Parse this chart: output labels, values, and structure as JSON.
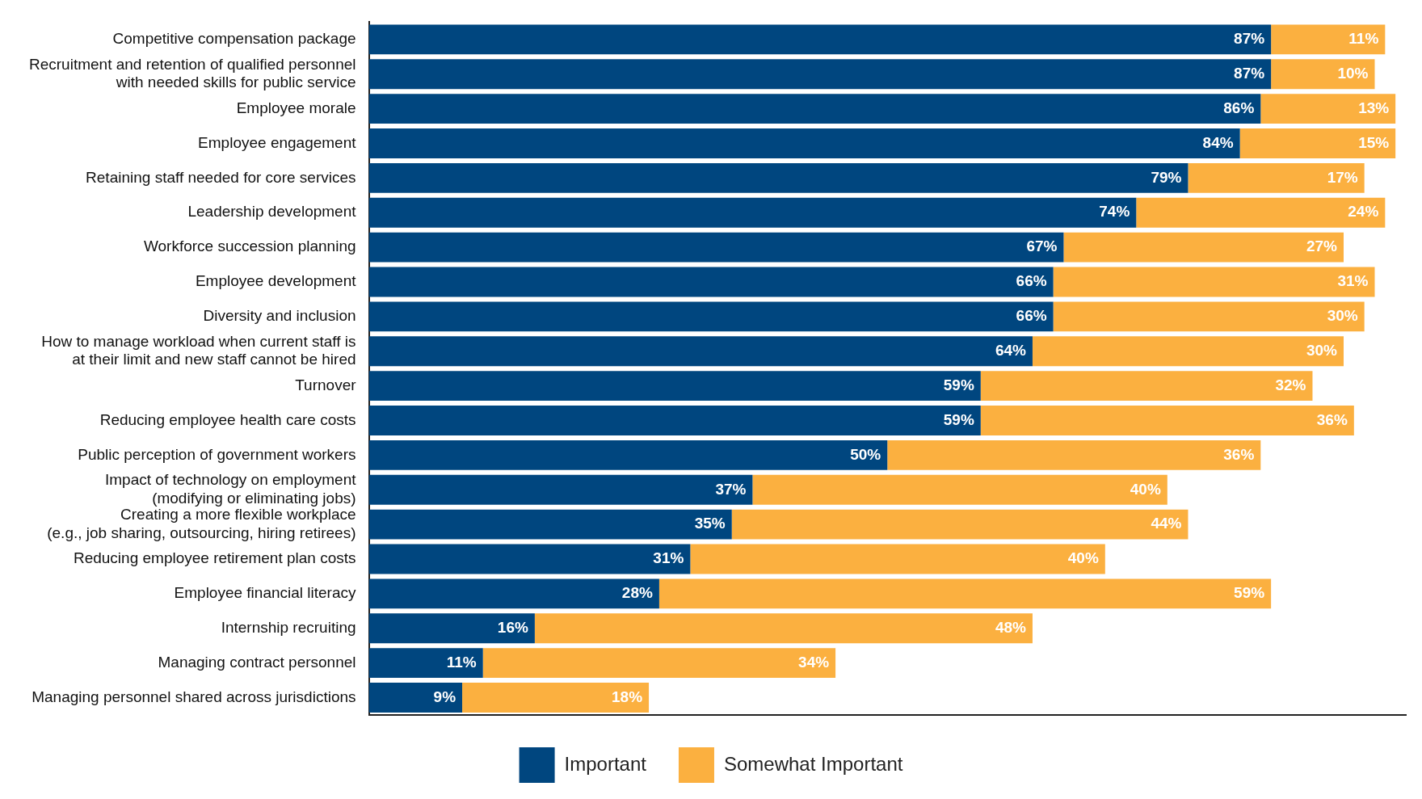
{
  "chart_data": {
    "type": "bar",
    "orientation": "horizontal",
    "stacked": true,
    "legend": "bottom",
    "grid": false,
    "tick_labels": "y",
    "categories": [
      "Competitive compensation package",
      "Recruitment and retention of qualified personnel\nwith needed skills for public service",
      "Employee morale",
      "Employee engagement",
      "Retaining staff needed for core services",
      "Leadership development",
      "Workforce succession planning",
      "Employee development",
      "Diversity and inclusion",
      "How to manage workload when current staff is\nat their limit and new staff cannot be hired",
      "Turnover",
      "Reducing employee health care costs",
      "Public perception of government workers",
      "Impact of technology on employment\n(modifying or eliminating jobs)",
      "Creating a more flexible workplace\n(e.g., job sharing, outsourcing, hiring retirees)",
      "Reducing employee retirement plan costs",
      "Employee financial literacy",
      "Internship recruiting",
      "Managing contract personnel",
      "Managing personnel shared across jurisdictions"
    ],
    "series": [
      {
        "name": "Important",
        "color": "#00467f",
        "values": [
          87,
          87,
          86,
          84,
          79,
          74,
          67,
          66,
          66,
          64,
          59,
          59,
          50,
          37,
          35,
          31,
          28,
          16,
          11,
          9
        ],
        "value_labels": [
          "87%",
          "87%",
          "86%",
          "84%",
          "79%",
          "74%",
          "67%",
          "66%",
          "66%",
          "64%",
          "59%",
          "59%",
          "50%",
          "37%",
          "35%",
          "31%",
          "28%",
          "16%",
          "11%",
          "9%"
        ]
      },
      {
        "name": "Somewhat Important",
        "color": "#fbb040",
        "values": [
          11,
          10,
          13,
          15,
          17,
          24,
          27,
          31,
          30,
          30,
          32,
          36,
          36,
          40,
          44,
          40,
          59,
          48,
          34,
          18
        ],
        "value_labels": [
          "11%",
          "10%",
          "13%",
          "15%",
          "17%",
          "24%",
          "27%",
          "31%",
          "30%",
          "30%",
          "32%",
          "36%",
          "36%",
          "40%",
          "44%",
          "40%",
          "59%",
          "48%",
          "34%",
          "18%"
        ]
      }
    ]
  }
}
